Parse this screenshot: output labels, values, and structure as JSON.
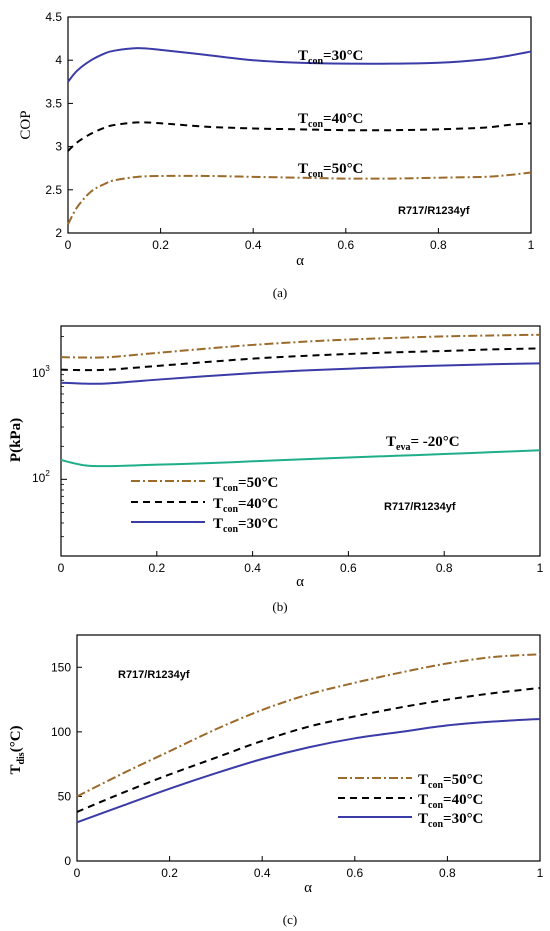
{
  "figure": {
    "panels": [
      {
        "caption": "(a)",
        "xlabel": "α",
        "ylabel": "COP",
        "xlim": [
          0,
          1
        ],
        "ylim": [
          2,
          4.5
        ],
        "x_ticks": [
          "0",
          "0.2",
          "0.4",
          "0.6",
          "0.8",
          "1"
        ],
        "y_ticks": [
          "2",
          "2.5",
          "3",
          "3.5",
          "4",
          "4.5"
        ],
        "refrigerant_label": "R717/R1234yf",
        "annotations": [
          {
            "main": "T",
            "sub": "con",
            "rest": "=30°C"
          },
          {
            "main": "T",
            "sub": "con",
            "rest": "=40°C"
          },
          {
            "main": "T",
            "sub": "con",
            "rest": "=50°C"
          }
        ]
      },
      {
        "caption": "(b)",
        "xlabel": "α",
        "ylabel": "P(kPa)",
        "xlim": [
          0,
          1
        ],
        "y_scale": "log",
        "ylim": [
          20,
          2500
        ],
        "x_ticks": [
          "0",
          "0.2",
          "0.4",
          "0.6",
          "0.8",
          "1"
        ],
        "y_tick_labels": [
          {
            "base": "10",
            "exp": "2"
          },
          {
            "base": "10",
            "exp": "3"
          }
        ],
        "refrigerant_label": "R717/R1234yf",
        "annotation": {
          "main": "T",
          "sub": "eva",
          "rest": "= -20°C"
        },
        "legend": [
          {
            "main": "T",
            "sub": "con",
            "rest": "=50°C"
          },
          {
            "main": "T",
            "sub": "con",
            "rest": "=40°C"
          },
          {
            "main": "T",
            "sub": "con",
            "rest": "=30°C"
          }
        ]
      },
      {
        "caption": "(c)",
        "xlabel": "α",
        "ylabel_main": "T",
        "ylabel_sub": "dis",
        "ylabel_rest": "(°C)",
        "xlim": [
          0,
          1
        ],
        "ylim": [
          0,
          175
        ],
        "x_ticks": [
          "0",
          "0.2",
          "0.4",
          "0.6",
          "0.8",
          "1"
        ],
        "y_ticks": [
          "0",
          "50",
          "100",
          "150"
        ],
        "refrigerant_label": "R717/R1234yf",
        "legend": [
          {
            "main": "T",
            "sub": "con",
            "rest": "=50°C"
          },
          {
            "main": "T",
            "sub": "con",
            "rest": "=40°C"
          },
          {
            "main": "T",
            "sub": "con",
            "rest": "=30°C"
          }
        ]
      }
    ]
  },
  "colors": {
    "t30": "#3b3ba8",
    "t40": "#000000",
    "t50": "#9c6a2a",
    "teva": "#1fae8a"
  },
  "chart_data": [
    {
      "type": "line",
      "xlabel": "α",
      "ylabel": "COP",
      "xlim": [
        0,
        1
      ],
      "ylim": [
        2,
        4.5
      ],
      "grid": false,
      "series": [
        {
          "name": "Tcon=30°C",
          "x": [
            0,
            0.02,
            0.05,
            0.08,
            0.1,
            0.15,
            0.2,
            0.3,
            0.4,
            0.5,
            0.6,
            0.7,
            0.8,
            0.9,
            0.95,
            1.0
          ],
          "y": [
            3.75,
            3.88,
            4.0,
            4.08,
            4.11,
            4.14,
            4.12,
            4.06,
            4.0,
            3.97,
            3.96,
            3.96,
            3.97,
            4.01,
            4.05,
            4.1
          ]
        },
        {
          "name": "Tcon=40°C",
          "x": [
            0,
            0.02,
            0.05,
            0.08,
            0.1,
            0.15,
            0.2,
            0.3,
            0.4,
            0.5,
            0.6,
            0.7,
            0.8,
            0.9,
            0.95,
            1.0
          ],
          "y": [
            2.95,
            3.05,
            3.15,
            3.22,
            3.25,
            3.28,
            3.27,
            3.23,
            3.21,
            3.2,
            3.19,
            3.19,
            3.2,
            3.22,
            3.25,
            3.27
          ]
        },
        {
          "name": "Tcon=50°C",
          "x": [
            0,
            0.02,
            0.05,
            0.08,
            0.1,
            0.15,
            0.2,
            0.3,
            0.4,
            0.5,
            0.6,
            0.7,
            0.8,
            0.9,
            0.95,
            1.0
          ],
          "y": [
            2.1,
            2.3,
            2.48,
            2.57,
            2.61,
            2.65,
            2.66,
            2.66,
            2.65,
            2.64,
            2.63,
            2.63,
            2.64,
            2.65,
            2.67,
            2.7
          ]
        }
      ]
    },
    {
      "type": "line",
      "xlabel": "α",
      "ylabel": "P(kPa)",
      "y_scale": "log",
      "xlim": [
        0,
        1
      ],
      "ylim": [
        20,
        2500
      ],
      "grid": false,
      "series": [
        {
          "name": "Tcon=50°C",
          "x": [
            0,
            0.05,
            0.1,
            0.2,
            0.3,
            0.4,
            0.5,
            0.6,
            0.7,
            0.8,
            0.9,
            1.0
          ],
          "y": [
            1300,
            1290,
            1300,
            1420,
            1550,
            1680,
            1790,
            1880,
            1950,
            2010,
            2050,
            2080
          ]
        },
        {
          "name": "Tcon=40°C",
          "x": [
            0,
            0.05,
            0.1,
            0.2,
            0.3,
            0.4,
            0.5,
            0.6,
            0.7,
            0.8,
            0.9,
            1.0
          ],
          "y": [
            1000,
            990,
            1000,
            1080,
            1170,
            1260,
            1330,
            1390,
            1440,
            1480,
            1530,
            1560
          ]
        },
        {
          "name": "Tcon=30°C",
          "x": [
            0,
            0.05,
            0.1,
            0.2,
            0.3,
            0.4,
            0.5,
            0.6,
            0.7,
            0.8,
            0.9,
            1.0
          ],
          "y": [
            760,
            745,
            750,
            810,
            870,
            930,
            980,
            1020,
            1060,
            1090,
            1120,
            1140
          ]
        },
        {
          "name": "Teva= -20°C",
          "x": [
            0,
            0.05,
            0.1,
            0.2,
            0.3,
            0.4,
            0.5,
            0.6,
            0.7,
            0.8,
            0.9,
            1.0
          ],
          "y": [
            150,
            134,
            132,
            136,
            140,
            146,
            152,
            158,
            164,
            170,
            177,
            184
          ]
        }
      ]
    },
    {
      "type": "line",
      "xlabel": "α",
      "ylabel": "Tdis(°C)",
      "xlim": [
        0,
        1
      ],
      "ylim": [
        0,
        175
      ],
      "grid": false,
      "series": [
        {
          "name": "Tcon=50°C",
          "x": [
            0,
            0.1,
            0.2,
            0.3,
            0.4,
            0.5,
            0.6,
            0.7,
            0.8,
            0.9,
            1.0
          ],
          "y": [
            50,
            68,
            85,
            102,
            117,
            129,
            138,
            146,
            153,
            158,
            160
          ]
        },
        {
          "name": "Tcon=40°C",
          "x": [
            0,
            0.1,
            0.2,
            0.3,
            0.4,
            0.5,
            0.6,
            0.7,
            0.8,
            0.9,
            1.0
          ],
          "y": [
            38,
            53,
            67,
            80,
            93,
            104,
            112,
            119,
            125,
            130,
            134
          ]
        },
        {
          "name": "Tcon=30°C",
          "x": [
            0,
            0.1,
            0.2,
            0.3,
            0.4,
            0.5,
            0.6,
            0.7,
            0.8,
            0.9,
            1.0
          ],
          "y": [
            30,
            43,
            56,
            68,
            79,
            88,
            95,
            100,
            105,
            108,
            110
          ]
        }
      ]
    }
  ]
}
